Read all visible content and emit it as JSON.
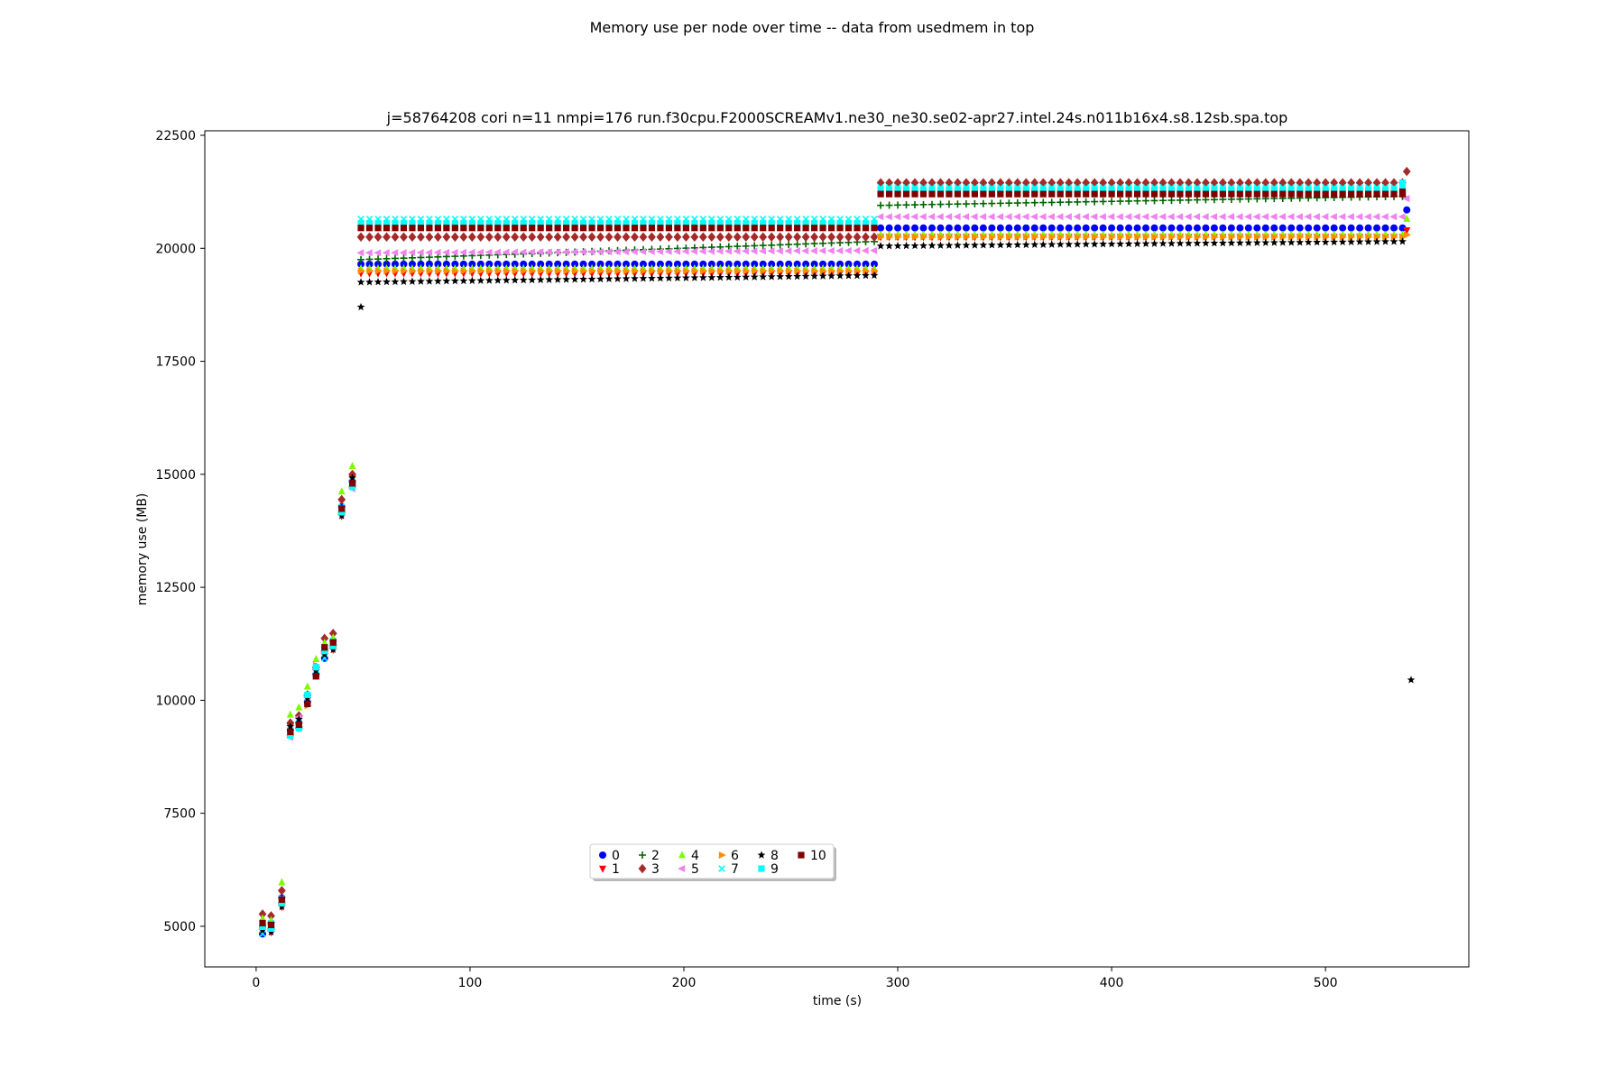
{
  "figure": {
    "suptitle": "Memory use per node over time -- data from usedmem in top"
  },
  "chart_data": {
    "type": "scatter",
    "title": "j=58764208 cori n=11 nmpi=176 run.f30cpu.F2000SCREAMv1.ne30_ne30.se02-apr27.intel.24s.n011b16x4.s8.12sb.spa.top",
    "xlabel": "time (s)",
    "ylabel": "memory use (MB)",
    "xlim": [
      -24,
      567
    ],
    "ylim": [
      4100,
      22600
    ],
    "xticks": [
      0,
      100,
      200,
      300,
      400,
      500
    ],
    "yticks": [
      5000,
      7500,
      10000,
      12500,
      15000,
      17500,
      20000,
      22500
    ],
    "grid": false,
    "legend": {
      "placement": "lower-center",
      "columns": 6
    },
    "ramp": {
      "x": [
        3,
        7,
        12,
        16,
        20,
        24,
        28,
        32,
        36,
        40,
        45
      ],
      "common": [
        4950,
        4950,
        5550,
        9300,
        9500,
        10000,
        10650,
        11050,
        11200,
        14200,
        14800
      ]
    },
    "segments": [
      [
        49,
        289,
        4
      ],
      [
        292,
        536,
        4
      ]
    ],
    "series": [
      {
        "name": "0",
        "marker": "circle",
        "color": "#0000ff",
        "ramp_offset": 0,
        "v1": 19650,
        "v2": 20450,
        "last_x": 538,
        "last_y": 20850
      },
      {
        "name": "1",
        "marker": "triangle-down",
        "color": "#ff0000",
        "ramp_offset": 0,
        "v1": 19450,
        "v2": 20250,
        "last_x": 538,
        "last_y": 20400
      },
      {
        "name": "2",
        "marker": "plus",
        "color": "#006400",
        "ramp_offset": 0,
        "v1": 19750,
        "v1_end": 20150,
        "v2": 20950,
        "v2_end": 21150,
        "last_x": 536,
        "last_y": 21150
      },
      {
        "name": "3",
        "marker": "diamond",
        "color": "#a52a2a",
        "ramp_offset": 200,
        "v1": 20250,
        "v2": 21450,
        "last_x": 538,
        "last_y": 21700
      },
      {
        "name": "4",
        "marker": "triangle-up",
        "color": "#7cfc00",
        "ramp_offset": 300,
        "v1": 19550,
        "v2": 20300,
        "last_x": 538,
        "last_y": 20650
      },
      {
        "name": "5",
        "marker": "triangle-left",
        "color": "#ee82ee",
        "ramp_offset": 0,
        "v1": 19900,
        "v1_end": 19950,
        "v2": 20700,
        "last_x": 538,
        "last_y": 21100
      },
      {
        "name": "6",
        "marker": "triangle-right",
        "color": "#ff8c00",
        "ramp_offset": 0,
        "v1": 19500,
        "v2": 20250,
        "last_x": 538,
        "last_y": 20300
      },
      {
        "name": "7",
        "marker": "x",
        "color": "#00ffff",
        "ramp_offset": 0,
        "v1": 20650,
        "v2": 21350,
        "last_x": 536,
        "last_y": 21400
      },
      {
        "name": "8",
        "marker": "star",
        "color": "#000000",
        "ramp_offset": 0,
        "v1": 19250,
        "v1_end": 19400,
        "v2": 20050,
        "v2_end": 20150,
        "last_x": 540,
        "last_y": 10450,
        "extra": [
          [
            49,
            18700
          ]
        ]
      },
      {
        "name": "9",
        "marker": "square",
        "color": "#00ffff",
        "ramp_offset": 0,
        "v1": 20550,
        "v2": 21300,
        "last_x": 536,
        "last_y": 21450
      },
      {
        "name": "10",
        "marker": "square",
        "color": "#800000",
        "ramp_offset": 0,
        "v1": 20450,
        "v2": 21200,
        "last_x": 536,
        "last_y": 21250
      }
    ]
  }
}
